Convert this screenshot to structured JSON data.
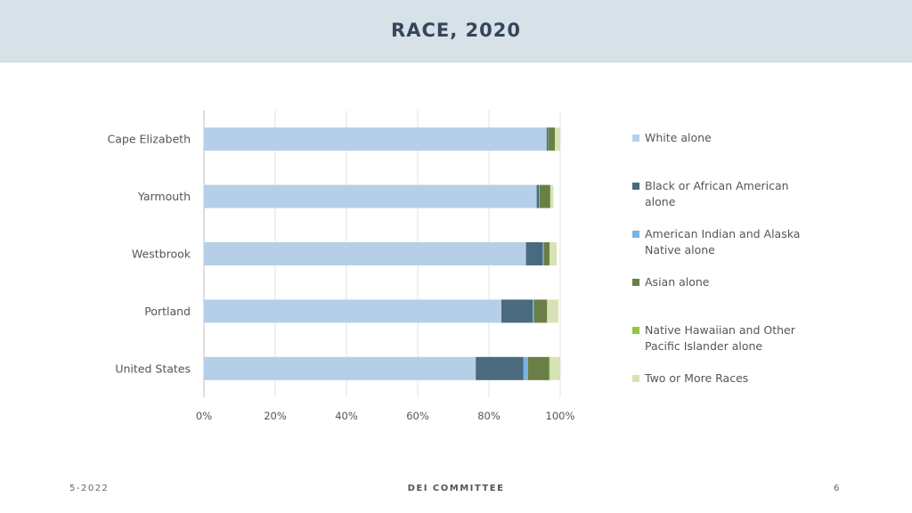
{
  "header": {
    "title": "RACE, 2020"
  },
  "footer": {
    "left": "5-2022",
    "center": "DEI COMMITTEE",
    "right": "6"
  },
  "colors": {
    "header_bg": "#d6e1e8",
    "white_alone": "#b5cfe8",
    "black": "#4a6a7e",
    "american_indian": "#7ab3e0",
    "asian": "#6a7f46",
    "native_hawaiian": "#8fc63f",
    "two_or_more": "#d7e3b5"
  },
  "chart_data": {
    "type": "bar",
    "orientation": "horizontal",
    "stacked": "percent",
    "categories": [
      "Cape Elizabeth",
      "Yarmouth",
      "Westbrook",
      "Portland",
      "United States"
    ],
    "series": [
      {
        "name": "White alone",
        "color": "#b5cfe8",
        "values": [
          96.2,
          93.4,
          90.4,
          83.5,
          76.3
        ]
      },
      {
        "name": "Black or African American alone",
        "color": "#4a6a7e",
        "values": [
          0.3,
          0.6,
          4.7,
          8.8,
          13.4
        ]
      },
      {
        "name": "American Indian and Alaska Native alone",
        "color": "#7ab3e0",
        "values": [
          0.1,
          0.2,
          0.3,
          0.3,
          1.3
        ]
      },
      {
        "name": "Asian alone",
        "color": "#6a7f46",
        "values": [
          1.9,
          3.0,
          1.6,
          3.7,
          5.9
        ]
      },
      {
        "name": "Native Hawaiian and Other Pacific Islander alone",
        "color": "#8fc63f",
        "values": [
          0.0,
          0.1,
          0.0,
          0.1,
          0.2
        ]
      },
      {
        "name": "Two or More Races",
        "color": "#d7e3b5",
        "values": [
          1.5,
          0.8,
          2.0,
          3.1,
          2.9
        ]
      }
    ],
    "xticks": [
      "0%",
      "20%",
      "40%",
      "60%",
      "80%",
      "100%"
    ],
    "xlim": [
      0,
      100
    ],
    "grid": true,
    "legend_position": "right"
  }
}
